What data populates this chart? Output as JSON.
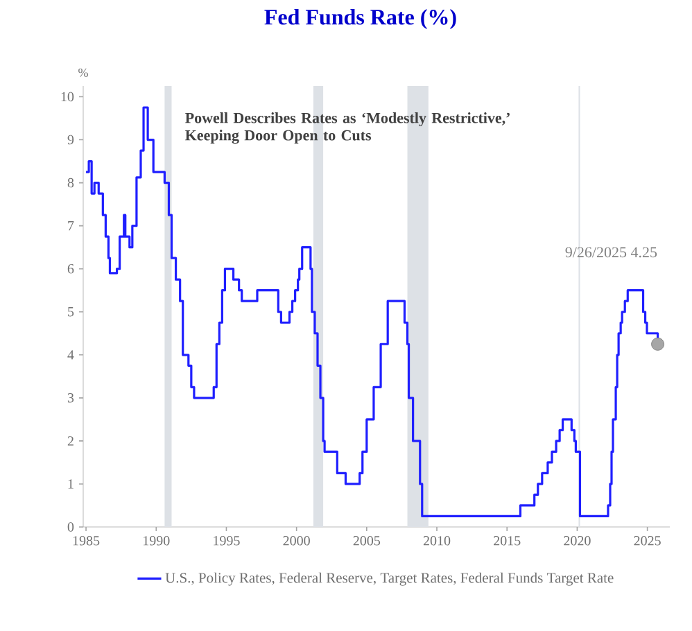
{
  "chart_data": {
    "type": "step",
    "title": "Fed Funds Rate (%)",
    "ylabel": "%",
    "x": [
      1985.0,
      1985.2,
      1985.4,
      1985.6,
      1985.9,
      1986.2,
      1986.4,
      1986.6,
      1986.7,
      1987.2,
      1987.4,
      1987.7,
      1987.8,
      1988.1,
      1988.3,
      1988.6,
      1988.9,
      1989.1,
      1989.4,
      1989.8,
      1990.6,
      1990.9,
      1991.1,
      1991.4,
      1991.7,
      1991.9,
      1992.3,
      1992.5,
      1992.7,
      1994.1,
      1994.3,
      1994.5,
      1994.7,
      1994.9,
      1995.5,
      1995.9,
      1996.1,
      1997.2,
      1998.7,
      1998.9,
      1999.5,
      1999.7,
      1999.9,
      2000.1,
      2000.2,
      2000.4,
      2001.0,
      2001.1,
      2001.3,
      2001.5,
      2001.7,
      2001.9,
      2002.0,
      2002.9,
      2003.5,
      2004.5,
      2004.7,
      2005.0,
      2005.5,
      2006.0,
      2006.5,
      2007.7,
      2007.9,
      2008.0,
      2008.3,
      2008.8,
      2008.95,
      2015.95,
      2016.95,
      2017.2,
      2017.5,
      2017.9,
      2018.2,
      2018.5,
      2018.75,
      2018.97,
      2019.6,
      2019.8,
      2019.9,
      2020.2,
      2022.2,
      2022.35,
      2022.45,
      2022.55,
      2022.75,
      2022.85,
      2022.95,
      2023.1,
      2023.2,
      2023.4,
      2023.6,
      2024.7,
      2024.85,
      2024.97,
      2025.74
    ],
    "series": [
      {
        "name": "U.S., Policy Rates, Federal Reserve, Target Rates, Federal Funds Target Rate",
        "color": "#1f1fff",
        "values": [
          8.25,
          8.5,
          7.75,
          8.0,
          7.75,
          7.25,
          6.75,
          6.25,
          5.9,
          6.0,
          6.75,
          7.25,
          6.75,
          6.5,
          7.0,
          8.125,
          8.75,
          9.75,
          9.0,
          8.25,
          8.0,
          7.25,
          6.25,
          5.75,
          5.25,
          4.0,
          3.75,
          3.25,
          3.0,
          3.25,
          4.25,
          4.75,
          5.5,
          6.0,
          5.75,
          5.5,
          5.25,
          5.5,
          5.0,
          4.75,
          5.0,
          5.25,
          5.5,
          5.75,
          6.0,
          6.5,
          6.0,
          5.0,
          4.5,
          3.75,
          3.0,
          2.0,
          1.75,
          1.25,
          1.0,
          1.25,
          1.75,
          2.5,
          3.25,
          4.25,
          5.25,
          4.75,
          4.25,
          3.0,
          2.0,
          1.0,
          0.25,
          0.5,
          0.75,
          1.0,
          1.25,
          1.5,
          1.75,
          2.0,
          2.25,
          2.5,
          2.25,
          2.0,
          1.75,
          0.25,
          0.5,
          1.0,
          1.75,
          2.5,
          3.25,
          4.0,
          4.5,
          4.75,
          5.0,
          5.25,
          5.5,
          5.0,
          4.75,
          4.5,
          4.25
        ]
      }
    ],
    "xlim": [
      1984.8,
      2026.6
    ],
    "ylim": [
      0,
      10.25
    ],
    "xticks": [
      1985,
      1990,
      1995,
      2000,
      2005,
      2010,
      2015,
      2020,
      2025
    ],
    "yticks": [
      0,
      1,
      2,
      3,
      4,
      5,
      6,
      7,
      8,
      9,
      10
    ],
    "bands": [
      {
        "axis": "x",
        "from": 1990.6,
        "to": 1991.1,
        "color": "#dde1e6"
      },
      {
        "axis": "x",
        "from": 2001.2,
        "to": 2001.9,
        "color": "#dde1e6"
      },
      {
        "axis": "x",
        "from": 2007.9,
        "to": 2009.4,
        "color": "#dde1e6"
      },
      {
        "axis": "x",
        "from": 2020.1,
        "to": 2020.2,
        "color": "#dde1e6"
      }
    ],
    "annotations": [
      "Powell Describes Rates as ‘Modestly Restrictive,’ Keeping Door Open to Cuts",
      "9/26/2025 4.25"
    ],
    "legend": "bottom"
  }
}
